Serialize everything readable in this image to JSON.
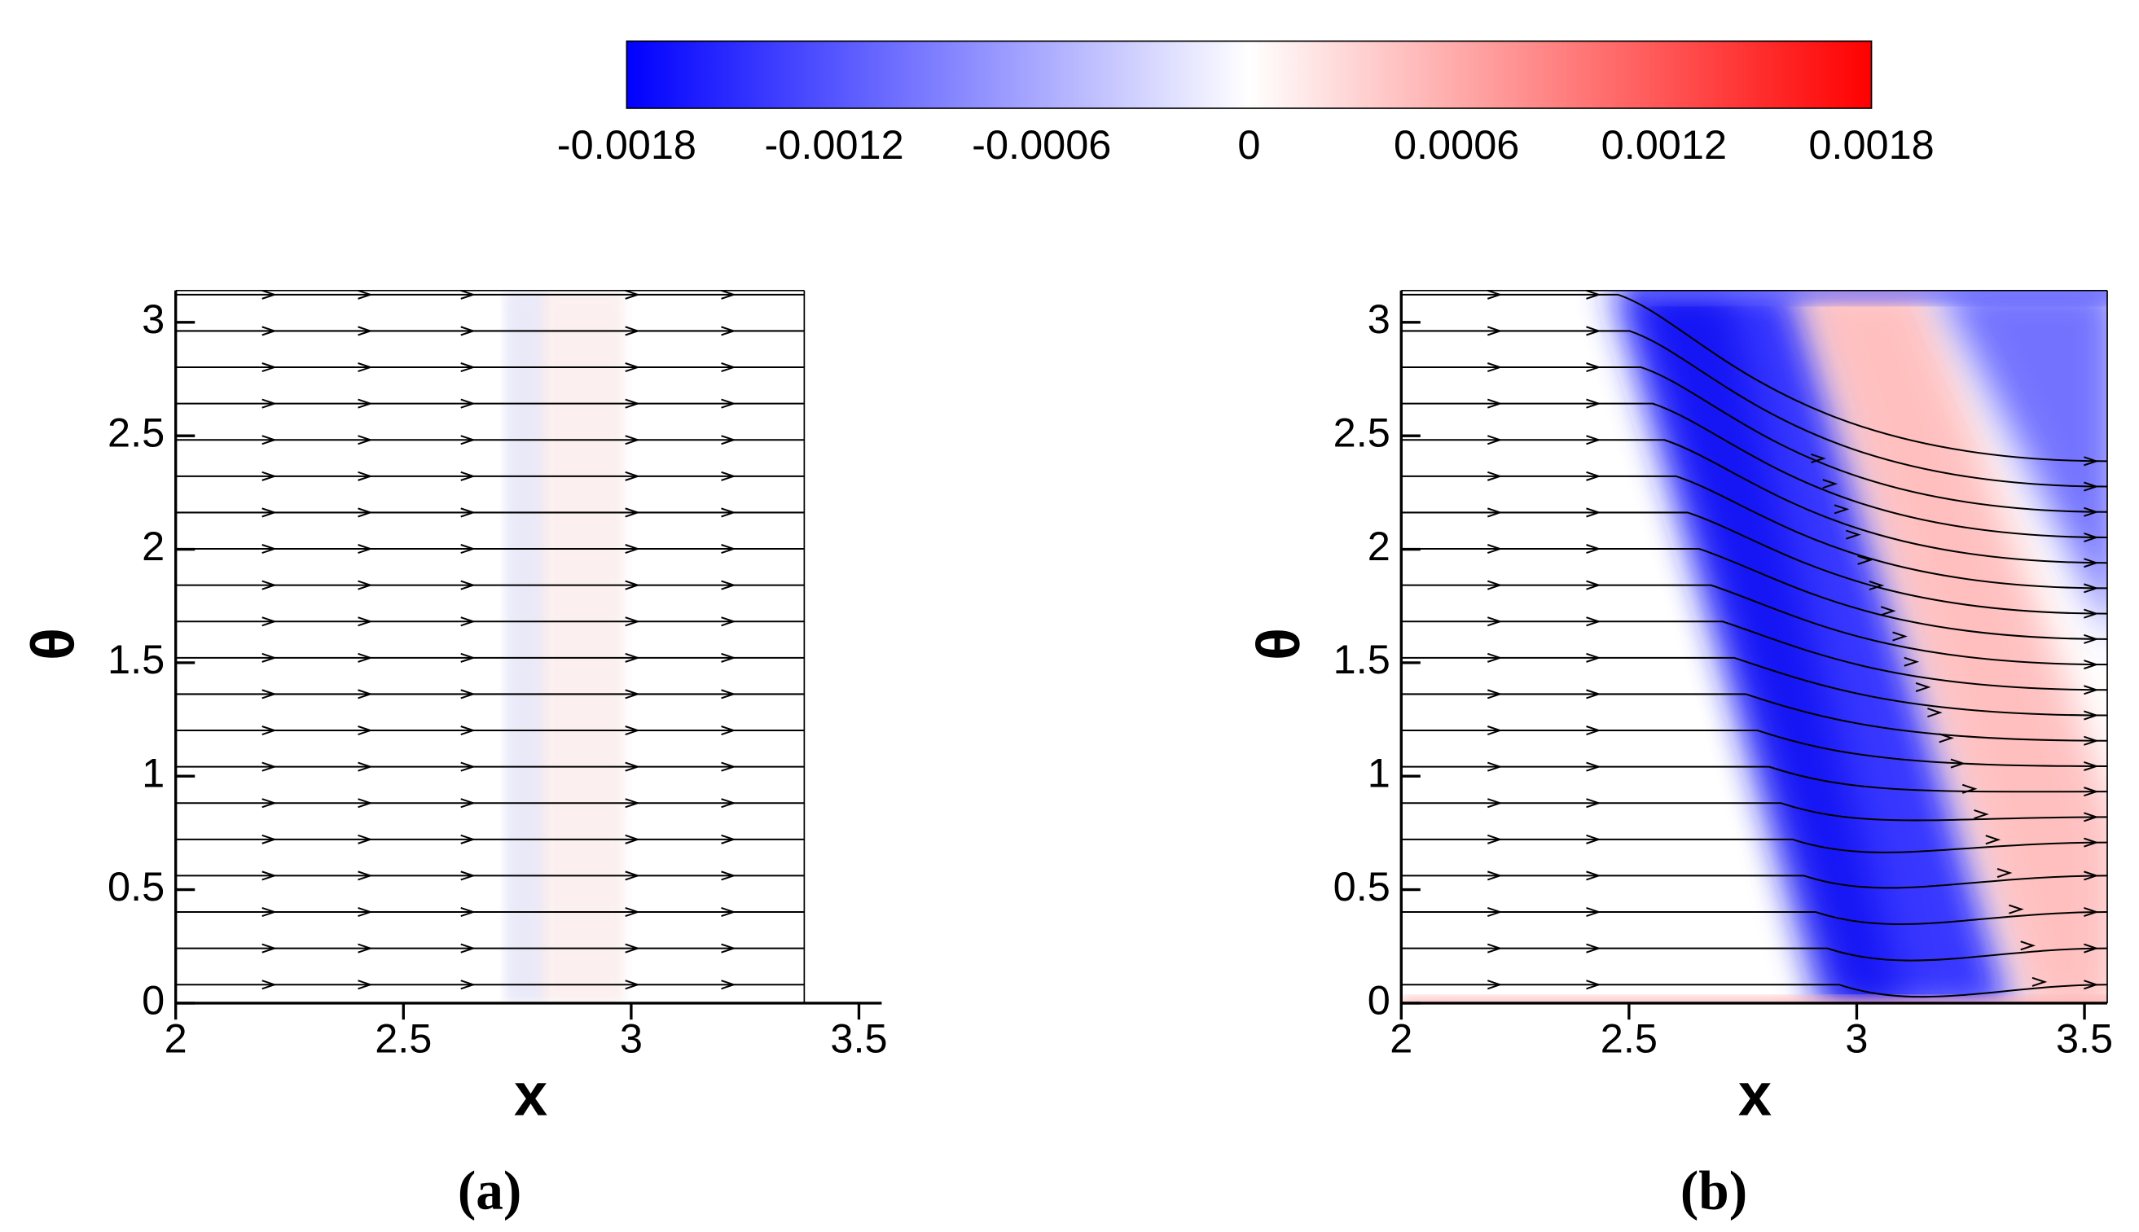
{
  "colorbar": {
    "lim": [
      -0.0018,
      0.0018
    ],
    "ticks": [
      -0.0018,
      -0.0012,
      -0.0006,
      0,
      0.0006,
      0.0012,
      0.0018
    ],
    "colors": [
      "#0000ff",
      "#ffffff",
      "#ff0000"
    ]
  },
  "chart_data": [
    {
      "type": "contour",
      "panel_label": "(a)",
      "x_label": "x",
      "y_label": "θ",
      "xlim": [
        2,
        3.55
      ],
      "ylim": [
        0,
        3.14
      ],
      "xrange": [
        2,
        3.38
      ],
      "xticks": [
        2,
        2.5,
        3,
        3.5
      ],
      "yticks": [
        0,
        0.5,
        1,
        1.5,
        2,
        2.5,
        3
      ]
    },
    {
      "type": "contour",
      "panel_label": "(b)",
      "x_label": "x",
      "y_label": "θ",
      "xlim": [
        2,
        3.55
      ],
      "ylim": [
        0,
        3.14
      ],
      "xrange": [
        2,
        3.55
      ],
      "xticks": [
        2,
        2.5,
        3,
        3.5
      ],
      "yticks": [
        0,
        0.5,
        1,
        1.5,
        2,
        2.5,
        3
      ]
    }
  ]
}
